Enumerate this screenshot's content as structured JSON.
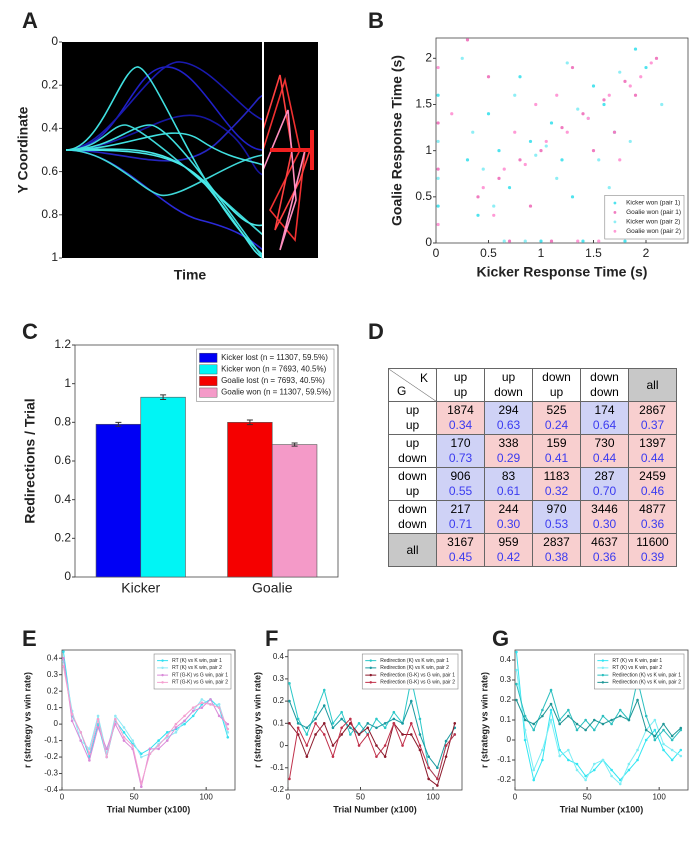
{
  "chart_data": [
    {
      "type": "line",
      "panel": "A",
      "xlabel": "Time",
      "ylabel": "Y Coordinate",
      "ylim": [
        1,
        0
      ],
      "yticks": [
        0,
        0.2,
        0.4,
        0.6,
        0.8,
        1
      ]
    },
    {
      "type": "scatter",
      "panel": "B",
      "xlabel": "Kicker Response Time (s)",
      "ylabel": "Goalie Response Time (s)",
      "xlim": [
        0,
        2.4
      ],
      "ylim": [
        0,
        2.22
      ],
      "xticks": [
        0,
        0.5,
        1,
        1.5,
        2
      ],
      "yticks": [
        0,
        0.5,
        1,
        1.5,
        2
      ],
      "legend": "lower right",
      "series": [
        {
          "name": "Kicker won (pair 1)",
          "color": "#4fe3ee",
          "x": [
            0.3,
            0.5,
            0.7,
            0.9,
            1.1,
            1.3,
            1.5,
            1.7,
            1.9,
            0.4,
            0.8,
            1.2,
            1.6,
            2.0,
            0.6,
            1.0,
            1.4,
            0.02,
            0.02,
            1.8
          ],
          "values": [
            0.9,
            1.4,
            0.6,
            1.1,
            1.3,
            0.5,
            1.7,
            1.2,
            2.1,
            0.3,
            1.8,
            0.9,
            1.5,
            1.9,
            1.0,
            0.02,
            0.02,
            1.6,
            0.4,
            0.02
          ]
        },
        {
          "name": "Goalie won (pair 1)",
          "color": "#f07cc0",
          "x": [
            0.4,
            0.6,
            0.8,
            1.0,
            1.2,
            1.4,
            1.6,
            1.8,
            0.5,
            0.9,
            1.3,
            1.7,
            2.1,
            0.7,
            1.1,
            1.5,
            0.02,
            0.02,
            1.9,
            0.3
          ],
          "values": [
            0.5,
            0.7,
            0.9,
            1.0,
            1.25,
            1.4,
            1.55,
            1.75,
            1.8,
            0.4,
            1.9,
            1.2,
            2.0,
            0.02,
            0.02,
            1.0,
            1.3,
            0.8,
            1.6,
            2.2
          ]
        },
        {
          "name": "Kicker won (pair 2)",
          "color": "#8eeef5",
          "x": [
            0.35,
            0.55,
            0.75,
            0.95,
            1.15,
            1.35,
            1.55,
            1.75,
            0.25,
            0.65,
            1.05,
            1.45,
            1.85,
            2.15,
            0.85,
            1.25,
            0.02,
            0.02,
            1.65,
            0.45
          ],
          "values": [
            1.2,
            0.4,
            1.6,
            0.95,
            0.7,
            1.45,
            0.9,
            1.85,
            2.0,
            0.02,
            1.05,
            1.35,
            1.1,
            1.5,
            0.02,
            1.95,
            1.1,
            0.7,
            0.6,
            0.8
          ]
        },
        {
          "name": "Goalie won (pair 2)",
          "color": "#ff9ad6",
          "x": [
            0.45,
            0.65,
            0.85,
            1.05,
            1.25,
            1.45,
            1.65,
            1.85,
            0.55,
            0.95,
            1.35,
            1.75,
            2.05,
            0.75,
            1.15,
            1.55,
            0.02,
            0.02,
            1.95,
            0.15
          ],
          "values": [
            0.6,
            0.8,
            0.85,
            1.1,
            1.2,
            1.35,
            1.6,
            1.7,
            0.3,
            1.5,
            0.02,
            0.9,
            1.95,
            1.2,
            1.6,
            0.02,
            1.9,
            0.2,
            1.8,
            1.4
          ]
        }
      ]
    },
    {
      "type": "bar",
      "panel": "C",
      "ylabel": "Redirections / Trial",
      "categories": [
        "Kicker",
        "Goalie"
      ],
      "ylim": [
        0,
        1.2
      ],
      "yticks": [
        0,
        0.2,
        0.4,
        0.6,
        0.8,
        1,
        1.2
      ],
      "legend": "upper right",
      "series": [
        {
          "name": "Kicker lost (n = 11307, 59.5%)",
          "color": "#0000f5",
          "values": [
            0.79,
            null
          ],
          "errors": [
            0.01,
            null
          ]
        },
        {
          "name": "Kicker won (n = 7693, 40.5%)",
          "color": "#00f5f5",
          "values": [
            0.93,
            null
          ],
          "errors": [
            0.012,
            null
          ]
        },
        {
          "name": "Goalie lost (n = 7693, 40.5%)",
          "color": "#f50000",
          "values": [
            null,
            0.8
          ],
          "errors": [
            null,
            0.012
          ]
        },
        {
          "name": "Goalie won (n = 11307, 59.5%)",
          "color": "#f49ac8",
          "values": [
            null,
            0.685
          ],
          "errors": [
            null,
            0.008
          ]
        }
      ]
    },
    {
      "type": "line",
      "panel": "E",
      "xlabel": "Trial Number (x100)",
      "ylabel": "r (strategy vs win rate)",
      "xlim": [
        0,
        120
      ],
      "ylim": [
        -0.4,
        0.45
      ],
      "xticks": [
        0,
        50,
        100
      ],
      "yticks": [
        -0.4,
        -0.3,
        -0.2,
        -0.1,
        0,
        0.1,
        0.2,
        0.3,
        0.4
      ],
      "legend": "upper right",
      "x": [
        1,
        7,
        13,
        19,
        25,
        31,
        37,
        43,
        49,
        55,
        61,
        67,
        73,
        79,
        85,
        91,
        97,
        103,
        109,
        115
      ],
      "series": [
        {
          "name": "RT (K) vs K win, pair 1",
          "color": "#33e0f0",
          "values": [
            0.44,
            0.05,
            -0.05,
            -0.2,
            0.0,
            -0.2,
            0.02,
            -0.05,
            -0.12,
            -0.18,
            -0.15,
            -0.1,
            -0.05,
            -0.03,
            0.0,
            0.05,
            0.12,
            0.15,
            0.1,
            -0.08
          ]
        },
        {
          "name": "RT (K) vs K win, pair 2",
          "color": "#8fe9f5",
          "values": [
            0.38,
            0.08,
            -0.1,
            -0.15,
            0.05,
            -0.18,
            0.05,
            -0.02,
            -0.1,
            -0.2,
            -0.18,
            -0.12,
            -0.08,
            -0.05,
            0.02,
            0.08,
            0.15,
            0.12,
            0.12,
            -0.05
          ]
        },
        {
          "name": "RT (G-K) vs G win, pair 1",
          "color": "#d98ad9",
          "values": [
            0.4,
            0.02,
            -0.1,
            -0.22,
            -0.02,
            -0.15,
            0.0,
            -0.1,
            -0.15,
            -0.38,
            -0.15,
            -0.15,
            -0.1,
            -0.02,
            0.02,
            0.08,
            0.1,
            0.15,
            0.05,
            0.0
          ]
        },
        {
          "name": "RT (G-K) vs G win, pair 2",
          "color": "#f4a0d0",
          "values": [
            0.35,
            0.06,
            -0.05,
            -0.18,
            0.03,
            -0.2,
            0.03,
            -0.08,
            -0.13,
            -0.36,
            -0.18,
            -0.13,
            -0.07,
            0.0,
            0.05,
            0.1,
            0.13,
            0.12,
            0.1,
            -0.03
          ]
        }
      ]
    },
    {
      "type": "line",
      "panel": "F",
      "xlabel": "Trial Number (x100)",
      "ylabel": "r (strategy vs win rate)",
      "xlim": [
        0,
        120
      ],
      "ylim": [
        -0.2,
        0.43
      ],
      "xticks": [
        0,
        50,
        100
      ],
      "yticks": [
        -0.2,
        -0.1,
        0,
        0.1,
        0.2,
        0.3,
        0.4
      ],
      "legend": "upper right",
      "x": [
        1,
        7,
        13,
        19,
        25,
        31,
        37,
        43,
        49,
        55,
        61,
        67,
        73,
        79,
        85,
        91,
        97,
        103,
        109,
        115
      ],
      "series": [
        {
          "name": "Redirection (K) vs K win, pair 1",
          "color": "#2bc8c8",
          "values": [
            0.28,
            0.12,
            0.05,
            0.15,
            0.25,
            0.1,
            0.15,
            0.05,
            0.1,
            0.05,
            0.12,
            0.08,
            0.15,
            0.1,
            0.3,
            0.12,
            -0.1,
            -0.15,
            0.0,
            0.05
          ]
        },
        {
          "name": "Redirection (K) vs K win, pair 2",
          "color": "#1a9aa0",
          "values": [
            0.2,
            0.1,
            0.08,
            0.12,
            0.18,
            0.08,
            0.12,
            0.08,
            0.05,
            0.1,
            0.08,
            0.1,
            0.12,
            0.1,
            0.2,
            0.05,
            -0.05,
            -0.1,
            0.02,
            0.08
          ]
        },
        {
          "name": "Redirection (G-K) vs G win, pair 1",
          "color": "#8c1a2c",
          "values": [
            0.1,
            0.05,
            -0.05,
            0.05,
            0.1,
            0.0,
            0.05,
            0.1,
            0.05,
            0.08,
            0.0,
            -0.05,
            0.1,
            0.05,
            0.05,
            -0.02,
            -0.15,
            -0.18,
            -0.05,
            0.1
          ]
        },
        {
          "name": "Redirection (G-K) vs G win, pair 2",
          "color": "#c0304a",
          "values": [
            -0.15,
            0.08,
            0.0,
            0.1,
            0.05,
            -0.05,
            0.08,
            0.12,
            0.0,
            0.05,
            -0.05,
            0.0,
            0.1,
            0.0,
            0.1,
            0.0,
            -0.1,
            -0.15,
            0.0,
            0.05
          ]
        }
      ]
    },
    {
      "type": "line",
      "panel": "G",
      "xlabel": "Trial Number (x100)",
      "ylabel": "r (strategy vs win rate)",
      "xlim": [
        0,
        120
      ],
      "ylim": [
        -0.25,
        0.45
      ],
      "xticks": [
        0,
        50,
        100
      ],
      "yticks": [
        -0.2,
        -0.1,
        0,
        0.1,
        0.2,
        0.3,
        0.4
      ],
      "legend": "upper right",
      "x": [
        1,
        7,
        13,
        19,
        25,
        31,
        37,
        43,
        49,
        55,
        61,
        67,
        73,
        79,
        85,
        91,
        97,
        103,
        109,
        115
      ],
      "series": [
        {
          "name": "RT (K) vs K win, pair 1",
          "color": "#33e6f2",
          "values": [
            0.44,
            0.0,
            -0.2,
            -0.1,
            0.15,
            -0.05,
            -0.1,
            -0.12,
            -0.18,
            -0.15,
            -0.1,
            -0.15,
            -0.2,
            -0.15,
            -0.1,
            0.0,
            0.05,
            -0.05,
            -0.1,
            -0.05
          ]
        },
        {
          "name": "RT (K) vs K win, pair 2",
          "color": "#7ceef5",
          "values": [
            0.35,
            0.05,
            -0.15,
            -0.05,
            0.1,
            -0.08,
            -0.05,
            -0.15,
            -0.2,
            -0.12,
            -0.1,
            -0.18,
            -0.22,
            -0.12,
            -0.05,
            0.05,
            0.1,
            -0.02,
            -0.05,
            -0.08
          ]
        },
        {
          "name": "Redirection (K) vs K win, pair 1",
          "color": "#2bbfbf",
          "values": [
            0.28,
            0.12,
            0.05,
            0.15,
            0.25,
            0.1,
            0.15,
            0.05,
            0.1,
            0.05,
            0.12,
            0.08,
            0.15,
            0.1,
            0.3,
            0.12,
            0.0,
            0.05,
            0.0,
            0.05
          ]
        },
        {
          "name": "Redirection (K) vs K win, pair 2",
          "color": "#1f9696",
          "values": [
            0.2,
            0.1,
            0.08,
            0.12,
            0.18,
            0.08,
            0.12,
            0.08,
            0.05,
            0.1,
            0.08,
            0.1,
            0.12,
            0.1,
            0.2,
            0.05,
            0.02,
            0.08,
            0.02,
            0.06
          ]
        }
      ]
    }
  ],
  "table": {
    "panel": "D",
    "corner": [
      "K",
      "G"
    ],
    "columns": [
      [
        "up",
        "up"
      ],
      [
        "up",
        "down"
      ],
      [
        "down",
        "up"
      ],
      [
        "down",
        "down"
      ],
      [
        "all"
      ]
    ],
    "rows": [
      {
        "header": [
          "up",
          "up"
        ],
        "cells": [
          {
            "n": "1874",
            "p": "0.34",
            "color": "#f8cfcf"
          },
          {
            "n": "294",
            "p": "0.63",
            "color": "#cfd2f6"
          },
          {
            "n": "525",
            "p": "0.24",
            "color": "#f8cfcf"
          },
          {
            "n": "174",
            "p": "0.64",
            "color": "#cfd2f6"
          },
          {
            "n": "2867",
            "p": "0.37",
            "color": "#f8cfcf"
          }
        ]
      },
      {
        "header": [
          "up",
          "down"
        ],
        "cells": [
          {
            "n": "170",
            "p": "0.73",
            "color": "#cfd2f6"
          },
          {
            "n": "338",
            "p": "0.29",
            "color": "#f8cfcf"
          },
          {
            "n": "159",
            "p": "0.41",
            "color": "#f8cfcf"
          },
          {
            "n": "730",
            "p": "0.44",
            "color": "#f8cfcf"
          },
          {
            "n": "1397",
            "p": "0.44",
            "color": "#f8cfcf"
          }
        ]
      },
      {
        "header": [
          "down",
          "up"
        ],
        "cells": [
          {
            "n": "906",
            "p": "0.55",
            "color": "#cfd2f6"
          },
          {
            "n": "83",
            "p": "0.61",
            "color": "#cfd2f6"
          },
          {
            "n": "1183",
            "p": "0.32",
            "color": "#f8cfcf"
          },
          {
            "n": "287",
            "p": "0.70",
            "color": "#cfd2f6"
          },
          {
            "n": "2459",
            "p": "0.46",
            "color": "#f8cfcf"
          }
        ]
      },
      {
        "header": [
          "down",
          "down"
        ],
        "cells": [
          {
            "n": "217",
            "p": "0.71",
            "color": "#cfd2f6"
          },
          {
            "n": "244",
            "p": "0.30",
            "color": "#f8cfcf"
          },
          {
            "n": "970",
            "p": "0.53",
            "color": "#cfd2f6"
          },
          {
            "n": "3446",
            "p": "0.30",
            "color": "#f8cfcf"
          },
          {
            "n": "4877",
            "p": "0.36",
            "color": "#f8cfcf"
          }
        ]
      },
      {
        "header": [
          "all"
        ],
        "cells": [
          {
            "n": "3167",
            "p": "0.45",
            "color": "#f8cfcf"
          },
          {
            "n": "959",
            "p": "0.42",
            "color": "#f8cfcf"
          },
          {
            "n": "2837",
            "p": "0.38",
            "color": "#f8cfcf"
          },
          {
            "n": "4637",
            "p": "0.36",
            "color": "#f8cfcf"
          },
          {
            "n": "11600",
            "p": "0.39",
            "color": "#f8cfcf"
          }
        ]
      }
    ]
  }
}
